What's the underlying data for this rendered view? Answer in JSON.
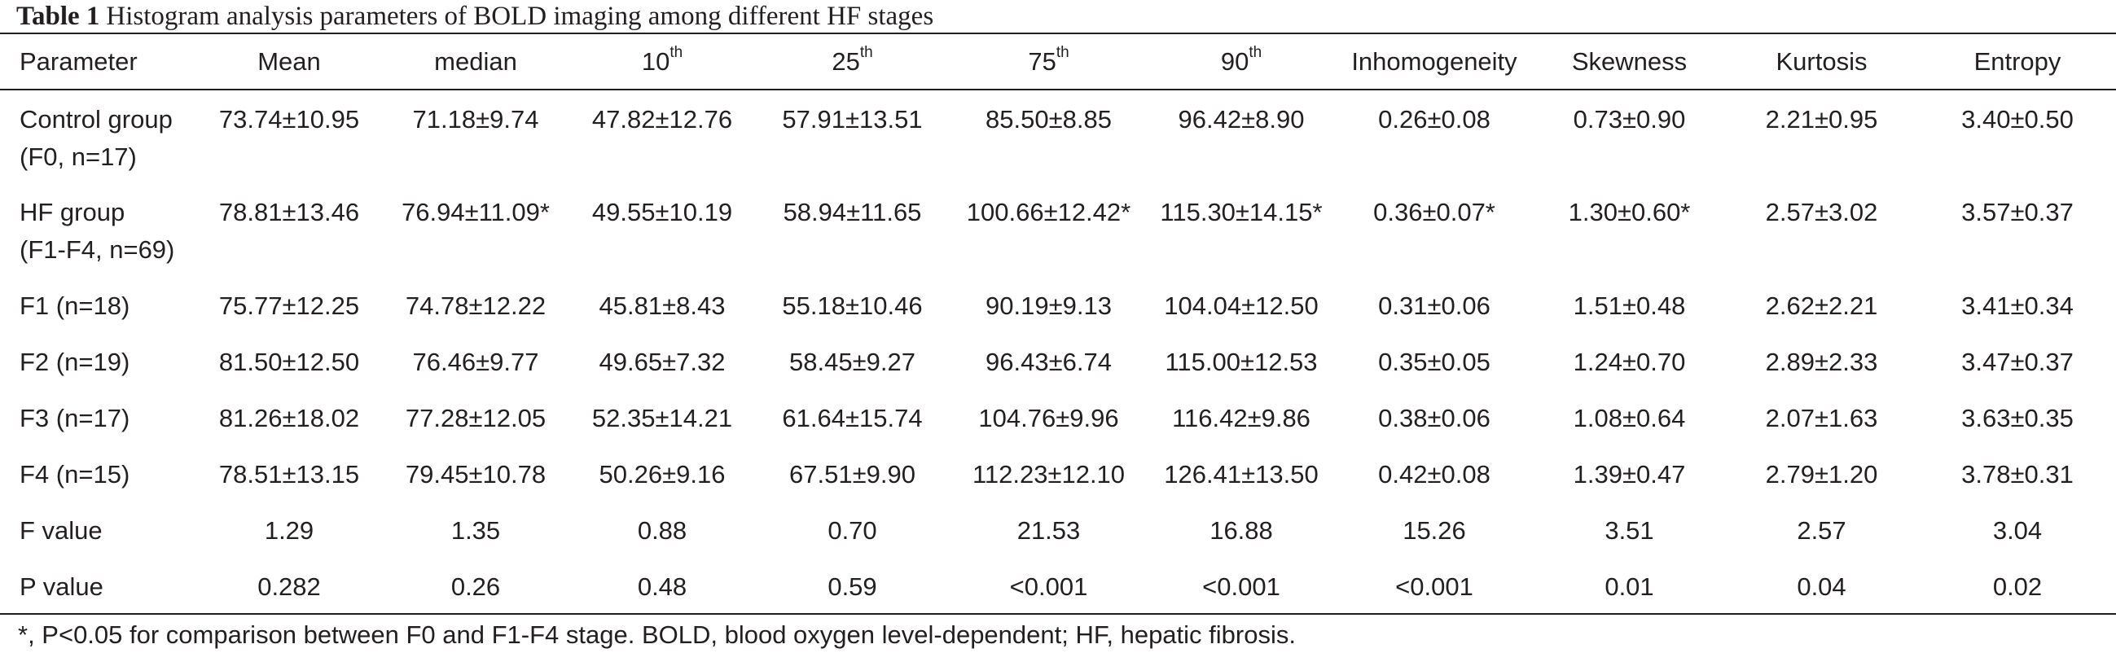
{
  "table": {
    "caption_label": "Table 1",
    "caption_text": "Histogram analysis parameters of BOLD imaging among different HF stages",
    "header": {
      "parameter": "Parameter",
      "mean": "Mean",
      "median": "median",
      "p10": "10",
      "p25": "25",
      "p75": "75",
      "p90": "90",
      "ordinal_suffix": "th",
      "inhomogeneity": "Inhomogeneity",
      "skewness": "Skewness",
      "kurtosis": "Kurtosis",
      "entropy": "Entropy"
    },
    "rows": [
      {
        "label1": "Control group",
        "label2": "(F0, n=17)",
        "cells": [
          "73.74±10.95",
          "71.18±9.74",
          "47.82±12.76",
          "57.91±13.51",
          "85.50±8.85",
          "96.42±8.90",
          "0.26±0.08",
          "0.73±0.90",
          "2.21±0.95",
          "3.40±0.50"
        ]
      },
      {
        "label1": "HF group",
        "label2": "(F1-F4, n=69)",
        "cells": [
          "78.81±13.46",
          "76.94±11.09*",
          "49.55±10.19",
          "58.94±11.65",
          "100.66±12.42*",
          "115.30±14.15*",
          "0.36±0.07*",
          "1.30±0.60*",
          "2.57±3.02",
          "3.57±0.37"
        ]
      },
      {
        "label1": "F1 (n=18)",
        "cells": [
          "75.77±12.25",
          "74.78±12.22",
          "45.81±8.43",
          "55.18±10.46",
          "90.19±9.13",
          "104.04±12.50",
          "0.31±0.06",
          "1.51±0.48",
          "2.62±2.21",
          "3.41±0.34"
        ]
      },
      {
        "label1": "F2 (n=19)",
        "cells": [
          "81.50±12.50",
          "76.46±9.77",
          "49.65±7.32",
          "58.45±9.27",
          "96.43±6.74",
          "115.00±12.53",
          "0.35±0.05",
          "1.24±0.70",
          "2.89±2.33",
          "3.47±0.37"
        ]
      },
      {
        "label1": "F3 (n=17)",
        "cells": [
          "81.26±18.02",
          "77.28±12.05",
          "52.35±14.21",
          "61.64±15.74",
          "104.76±9.96",
          "116.42±9.86",
          "0.38±0.06",
          "1.08±0.64",
          "2.07±1.63",
          "3.63±0.35"
        ]
      },
      {
        "label1": "F4 (n=15)",
        "cells": [
          "78.51±13.15",
          "79.45±10.78",
          "50.26±9.16",
          "67.51±9.90",
          "112.23±12.10",
          "126.41±13.50",
          "0.42±0.08",
          "1.39±0.47",
          "2.79±1.20",
          "3.78±0.31"
        ]
      },
      {
        "label1": "F value",
        "cells": [
          "1.29",
          "1.35",
          "0.88",
          "0.70",
          "21.53",
          "16.88",
          "15.26",
          "3.51",
          "2.57",
          "3.04"
        ]
      },
      {
        "label1": "P value",
        "cells": [
          "0.282",
          "0.26",
          "0.48",
          "0.59",
          "<0.001",
          "<0.001",
          "<0.001",
          "0.01",
          "0.04",
          "0.02"
        ]
      }
    ],
    "footnote": "*, P<0.05 for comparison between F0 and F1-F4 stage. BOLD, blood oxygen level-dependent; HF, hepatic fibrosis."
  }
}
